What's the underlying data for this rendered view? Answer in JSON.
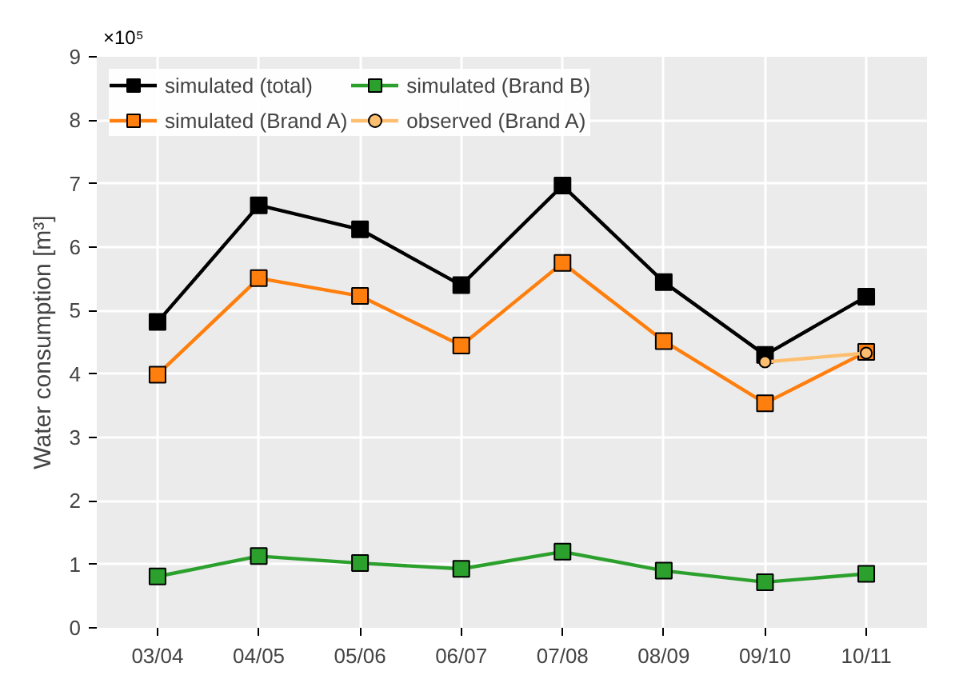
{
  "chart_data": {
    "type": "line",
    "ylabel": "Water consumption [m³]",
    "categories": [
      "03/04",
      "04/05",
      "05/06",
      "06/07",
      "07/08",
      "08/09",
      "09/10",
      "10/11"
    ],
    "series": [
      {
        "name": "simulated (total)",
        "color": "#000000",
        "marker": "square",
        "values": [
          4.82,
          6.66,
          6.28,
          5.4,
          6.97,
          5.45,
          4.3,
          5.22
        ]
      },
      {
        "name": "simulated (Brand A)",
        "color": "#ff7f0e",
        "marker": "square",
        "values": [
          3.99,
          5.51,
          5.23,
          4.45,
          5.75,
          4.52,
          3.54,
          4.35
        ]
      },
      {
        "name": "simulated (Brand B)",
        "color": "#2ca02c",
        "marker": "square",
        "values": [
          0.81,
          1.13,
          1.02,
          0.93,
          1.2,
          0.9,
          0.72,
          0.85
        ]
      },
      {
        "name": "observed (Brand A)",
        "color": "#fdbf6f",
        "marker": "circle",
        "values": [
          null,
          null,
          null,
          null,
          null,
          null,
          4.19,
          4.33
        ]
      }
    ],
    "ylim": [
      0,
      9
    ],
    "yticks": [
      0,
      1,
      2,
      3,
      4,
      5,
      6,
      7,
      8,
      9
    ],
    "annotations": [
      "×10⁵"
    ],
    "grid": true,
    "legend": "top left"
  }
}
